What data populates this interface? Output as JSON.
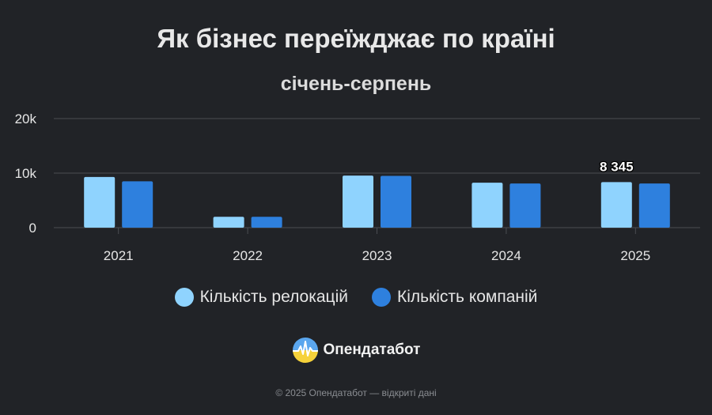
{
  "title": "Як бізнес переїжджає по країні",
  "subtitle": "січень-серпень",
  "brand": {
    "name": "Опендатабот"
  },
  "footer": "© 2025 Опендатабот — відкриті дані",
  "chart_data": {
    "type": "bar",
    "categories": [
      "2021",
      "2022",
      "2023",
      "2024",
      "2025"
    ],
    "series": [
      {
        "name": "Кількість релокацій",
        "color": "#8fd3fe",
        "values": [
          9300,
          2000,
          9550,
          8250,
          8345
        ]
      },
      {
        "name": "Кількість компаній",
        "color": "#2e80de",
        "values": [
          8500,
          2000,
          9500,
          8100,
          8100
        ]
      }
    ],
    "ylim": [
      0,
      20000
    ],
    "yticks": [
      {
        "value": 0,
        "label": "0"
      },
      {
        "value": 10000,
        "label": "10k"
      },
      {
        "value": 20000,
        "label": "20k"
      }
    ],
    "annotation": {
      "category": "2025",
      "text": "8 345"
    },
    "grid": true,
    "legend": "bottom-center"
  }
}
